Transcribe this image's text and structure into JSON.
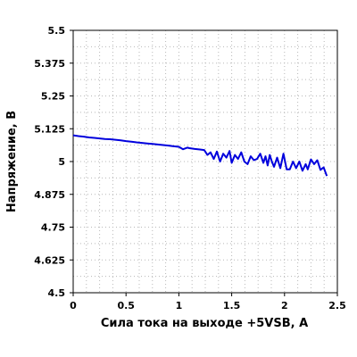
{
  "chart_data": {
    "type": "line",
    "xlabel": "Сила тока на выходе +5VSB, А",
    "ylabel": "Напряжение, В",
    "xlim": [
      0,
      2.5
    ],
    "ylim": [
      4.5,
      5.5
    ],
    "x_ticks": [
      0,
      0.5,
      1,
      1.5,
      2,
      2.5
    ],
    "x_tick_labels": [
      "0",
      "0.5",
      "1",
      "1.5",
      "2",
      "2.5"
    ],
    "y_ticks": [
      4.5,
      4.625,
      4.75,
      4.875,
      5,
      5.125,
      5.25,
      5.375,
      5.5
    ],
    "y_tick_labels": [
      "4.5",
      "4.625",
      "4.75",
      "4.875",
      "5",
      "5.125",
      "5.25",
      "5.375",
      "5.5"
    ],
    "grid": true,
    "series": [
      {
        "color": "#0000dd",
        "x": [
          0.0,
          0.05,
          0.1,
          0.15,
          0.2,
          0.25,
          0.3,
          0.35,
          0.4,
          0.45,
          0.5,
          0.55,
          0.6,
          0.65,
          0.7,
          0.75,
          0.8,
          0.85,
          0.9,
          0.95,
          1.0,
          1.04,
          1.08,
          1.1,
          1.15,
          1.2,
          1.24,
          1.27,
          1.3,
          1.33,
          1.36,
          1.39,
          1.42,
          1.45,
          1.48,
          1.5,
          1.53,
          1.56,
          1.59,
          1.62,
          1.65,
          1.68,
          1.71,
          1.74,
          1.77,
          1.8,
          1.82,
          1.84,
          1.86,
          1.88,
          1.9,
          1.93,
          1.96,
          1.99,
          2.02,
          2.05,
          2.08,
          2.11,
          2.14,
          2.17,
          2.2,
          2.22,
          2.25,
          2.28,
          2.31,
          2.34,
          2.37,
          2.4
        ],
        "values": [
          5.1,
          5.097,
          5.095,
          5.092,
          5.09,
          5.088,
          5.086,
          5.085,
          5.083,
          5.081,
          5.078,
          5.076,
          5.073,
          5.071,
          5.069,
          5.067,
          5.065,
          5.063,
          5.061,
          5.058,
          5.056,
          5.047,
          5.053,
          5.051,
          5.048,
          5.046,
          5.044,
          5.025,
          5.035,
          5.01,
          5.038,
          5.0,
          5.03,
          5.015,
          5.04,
          4.995,
          5.025,
          5.01,
          5.035,
          5.0,
          4.99,
          5.02,
          5.005,
          5.01,
          5.03,
          4.995,
          5.02,
          4.985,
          5.025,
          5.0,
          4.98,
          5.015,
          4.975,
          5.03,
          4.97,
          4.97,
          5.0,
          4.975,
          5.0,
          4.965,
          4.99,
          4.97,
          5.008,
          4.99,
          5.005,
          4.968,
          4.978,
          4.945
        ]
      }
    ]
  }
}
